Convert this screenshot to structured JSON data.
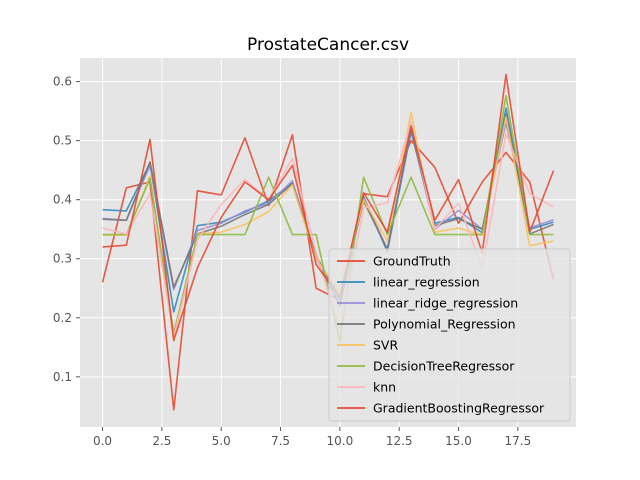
{
  "chart_data": {
    "type": "line",
    "title": "ProstateCancer.csv",
    "xlabel": "",
    "ylabel": "",
    "xlim": [
      -0.95,
      19.95
    ],
    "ylim": [
      0.015,
      0.64
    ],
    "xticks": [
      0.0,
      2.5,
      5.0,
      7.5,
      10.0,
      12.5,
      15.0,
      17.5
    ],
    "xtick_labels": [
      "0.0",
      "2.5",
      "5.0",
      "7.5",
      "10.0",
      "12.5",
      "15.0",
      "17.5"
    ],
    "yticks": [
      0.1,
      0.2,
      0.3,
      0.4,
      0.5,
      0.6
    ],
    "ytick_labels": [
      "0.1",
      "0.2",
      "0.3",
      "0.4",
      "0.5",
      "0.6"
    ],
    "grid": true,
    "legend_position": "lower-right",
    "x": [
      0,
      1,
      2,
      3,
      4,
      5,
      6,
      7,
      8,
      9,
      10,
      11,
      12,
      13,
      14,
      15,
      16,
      17,
      18,
      19
    ],
    "series": [
      {
        "name": "GroundTruth",
        "color": "#E24A33",
        "values": [
          0.26,
          0.42,
          0.43,
          0.044,
          0.415,
          0.408,
          0.505,
          0.39,
          0.51,
          0.25,
          0.23,
          0.41,
          0.405,
          0.5,
          0.455,
          0.36,
          0.43,
          0.48,
          0.43,
          0.265
        ]
      },
      {
        "name": "linear_regression",
        "color": "#348ABD",
        "values": [
          0.383,
          0.381,
          0.462,
          0.21,
          0.356,
          0.362,
          0.379,
          0.398,
          0.428,
          0.302,
          0.22,
          0.405,
          0.312,
          0.515,
          0.36,
          0.37,
          0.344,
          0.555,
          0.35,
          0.362
        ]
      },
      {
        "name": "linear_ridge_regression",
        "color": "#988ED5",
        "values": [
          0.368,
          0.365,
          0.458,
          0.248,
          0.348,
          0.36,
          0.381,
          0.394,
          0.432,
          0.3,
          0.228,
          0.402,
          0.316,
          0.518,
          0.35,
          0.382,
          0.35,
          0.53,
          0.352,
          0.366
        ]
      },
      {
        "name": "Polynomial_Regression",
        "color": "#777777",
        "values": [
          0.367,
          0.365,
          0.464,
          0.252,
          0.342,
          0.355,
          0.375,
          0.392,
          0.427,
          0.305,
          0.233,
          0.398,
          0.316,
          0.52,
          0.356,
          0.368,
          0.35,
          0.545,
          0.342,
          0.358
        ]
      },
      {
        "name": "SVR",
        "color": "#FBC15E",
        "values": [
          0.34,
          0.34,
          0.44,
          0.16,
          0.342,
          0.345,
          0.358,
          0.38,
          0.425,
          0.3,
          0.242,
          0.4,
          0.33,
          0.548,
          0.345,
          0.352,
          0.34,
          0.54,
          0.322,
          0.33
        ]
      },
      {
        "name": "DecisionTreeRegressor",
        "color": "#8EBA42",
        "values": [
          0.341,
          0.341,
          0.436,
          0.174,
          0.341,
          0.341,
          0.341,
          0.438,
          0.341,
          0.341,
          0.16,
          0.438,
          0.341,
          0.438,
          0.341,
          0.341,
          0.341,
          0.576,
          0.341,
          0.341
        ]
      },
      {
        "name": "knn",
        "color": "#FFB5B8",
        "values": [
          0.352,
          0.342,
          0.41,
          0.168,
          0.332,
          0.392,
          0.434,
          0.4,
          0.47,
          0.31,
          0.18,
          0.386,
          0.395,
          0.532,
          0.35,
          0.394,
          0.284,
          0.512,
          0.41,
          0.388
        ]
      },
      {
        "name": "GradientBoostingRegressor",
        "color": "#E24A33",
        "values": [
          0.32,
          0.323,
          0.502,
          0.162,
          0.285,
          0.37,
          0.43,
          0.4,
          0.458,
          0.29,
          0.235,
          0.412,
          0.345,
          0.525,
          0.365,
          0.434,
          0.31,
          0.612,
          0.345,
          0.449
        ]
      }
    ]
  }
}
